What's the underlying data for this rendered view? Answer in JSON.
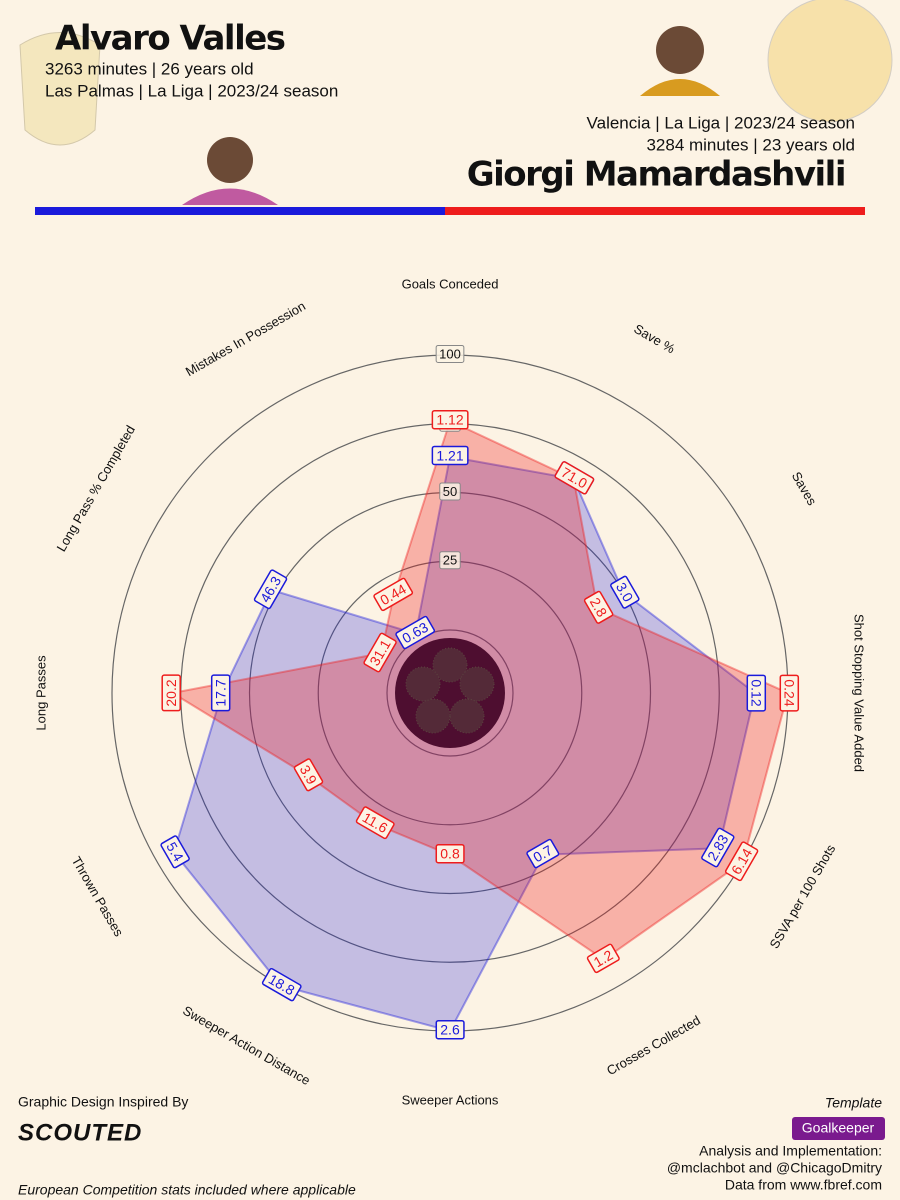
{
  "chart_data": {
    "type": "radar",
    "categories": [
      "Goals Conceded",
      "Save %",
      "Saves",
      "Shot Stopping Value Added",
      "SSVA per 100 Shots",
      "Crosses Collected",
      "Sweeper Actions",
      "Sweeper Action Distance",
      "Thrown Passes",
      "Long Passes",
      "Long Pass % Completed",
      "Mistakes In Possession"
    ],
    "rlim": [
      0,
      100
    ],
    "rticks": [
      25,
      50,
      75,
      100
    ],
    "series": [
      {
        "name": "Alvaro Valles",
        "color": "#1a1adb",
        "info": [
          "3263 minutes | 26 years old",
          "Las Palmas | La Liga | 2023/24 season"
        ],
        "values": [
          63,
          67,
          50,
          88,
          90,
          45,
          100,
          100,
          93,
          60,
          52,
          2
        ],
        "stats": [
          "1.21",
          "71.0",
          "3.0",
          "0.12",
          "2.83",
          "0.7",
          "2.6",
          "18.8",
          "5.4",
          "17.7",
          "46.3",
          "0.63"
        ]
      },
      {
        "name": "Giorgi Mamardashvili",
        "color": "#ee1c1c",
        "info": [
          "Valencia | La Liga | 2023/24 season",
          "3284 minutes | 23 years old"
        ],
        "values": [
          76,
          67,
          39,
          100,
          100,
          89,
          36,
          32,
          37,
          78,
          6,
          18
        ],
        "stats": [
          "1.12",
          "71.0",
          "2.8",
          "0.24",
          "6.14",
          "1.2",
          "0.8",
          "11.6",
          "3.9",
          "20.2",
          "31.1",
          "0.44"
        ]
      }
    ]
  },
  "footer": {
    "design_credit": "Graphic Design Inspired By",
    "brand": "SCOUTED",
    "note": "European Competition stats included where applicable",
    "template_label": "Template",
    "template": "Goalkeeper",
    "credits": [
      "Analysis and Implementation:",
      "@mclachbot and @ChicagoDmitry",
      "Data from www.fbref.com"
    ]
  }
}
